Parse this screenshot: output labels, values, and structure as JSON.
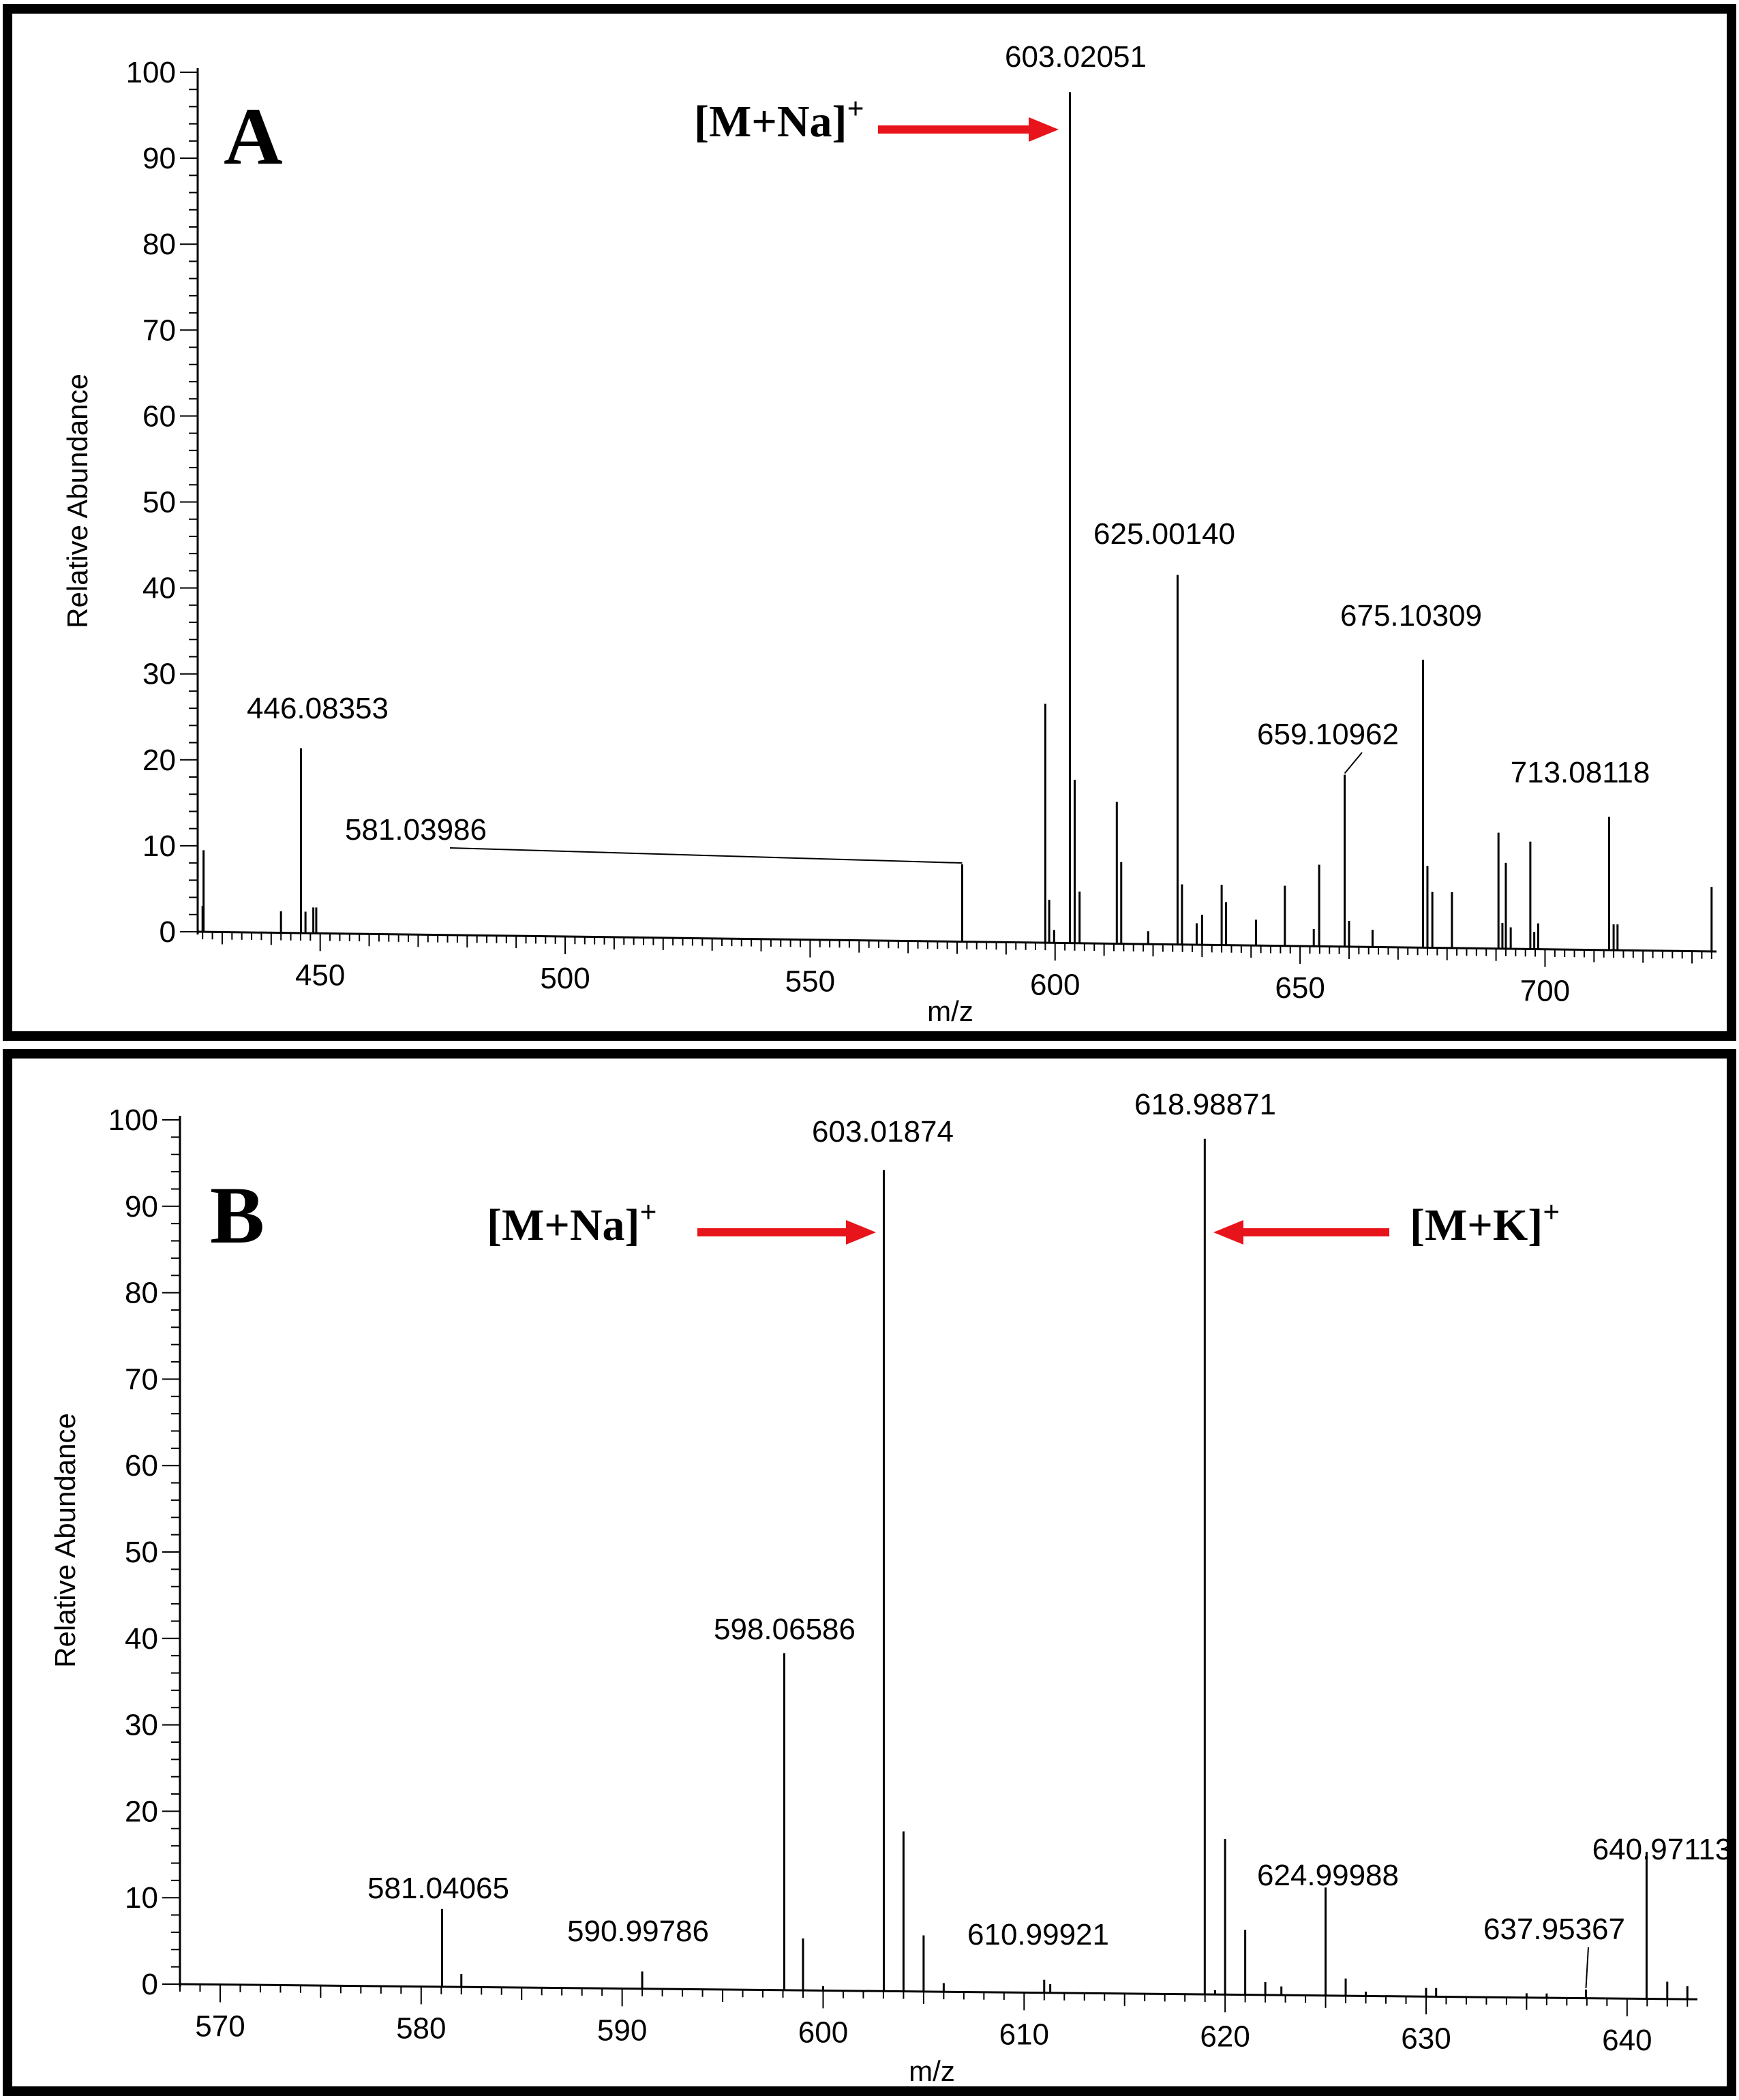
{
  "chart_data": [
    {
      "type": "bar",
      "panel": "A",
      "title": "",
      "xlabel": "m/z",
      "ylabel": "Relative Abundance",
      "xlim": [
        425,
        735
      ],
      "ylim": [
        0,
        100
      ],
      "x_ticks": [
        "450",
        "500",
        "550",
        "600",
        "650",
        "700"
      ],
      "y_ticks": [
        "0",
        "10",
        "20",
        "30",
        "40",
        "50",
        "60",
        "70",
        "80",
        "90",
        "100"
      ],
      "peaks": [
        {
          "mz": 426.2,
          "value": 9.5
        },
        {
          "mz": 426.0,
          "value": 3.0
        },
        {
          "mz": 442.0,
          "value": 2.5
        },
        {
          "mz": 446.08353,
          "value": 21.5,
          "label": "446.08353"
        },
        {
          "mz": 447.0,
          "value": 2.5
        },
        {
          "mz": 448.6,
          "value": 3.0
        },
        {
          "mz": 449.2,
          "value": 3.0
        },
        {
          "mz": 581.03986,
          "value": 9.0,
          "label": "581.03986"
        },
        {
          "mz": 598.0,
          "value": 27.8
        },
        {
          "mz": 598.8,
          "value": 5.0
        },
        {
          "mz": 599.8,
          "value": 1.5
        },
        {
          "mz": 603.02051,
          "value": 99.0,
          "label": "603.02051"
        },
        {
          "mz": 604.0,
          "value": 19.0
        },
        {
          "mz": 605.0,
          "value": 6.0
        },
        {
          "mz": 612.6,
          "value": 16.5
        },
        {
          "mz": 613.5,
          "value": 9.5
        },
        {
          "mz": 619.0,
          "value": 1.5
        },
        {
          "mz": 625.0014,
          "value": 43.0,
          "label": "625.00140"
        },
        {
          "mz": 625.9,
          "value": 7.0
        },
        {
          "mz": 628.9,
          "value": 2.5
        },
        {
          "mz": 630.0,
          "value": 3.5
        },
        {
          "mz": 634.0,
          "value": 7.0
        },
        {
          "mz": 634.9,
          "value": 5.0
        },
        {
          "mz": 641.0,
          "value": 3.0
        },
        {
          "mz": 646.9,
          "value": 7.0
        },
        {
          "mz": 652.8,
          "value": 2.0
        },
        {
          "mz": 653.9,
          "value": 9.5
        },
        {
          "mz": 659.10962,
          "value": 20.0,
          "label": "659.10962"
        },
        {
          "mz": 660.0,
          "value": 3.0
        },
        {
          "mz": 664.8,
          "value": 2.0
        },
        {
          "mz": 675.10309,
          "value": 33.5,
          "label": "675.10309"
        },
        {
          "mz": 676.0,
          "value": 9.5
        },
        {
          "mz": 677.0,
          "value": 6.5
        },
        {
          "mz": 681.0,
          "value": 6.5
        },
        {
          "mz": 690.5,
          "value": 13.5
        },
        {
          "mz": 691.3,
          "value": 3.0
        },
        {
          "mz": 692.0,
          "value": 10.0
        },
        {
          "mz": 693.0,
          "value": 2.5
        },
        {
          "mz": 697.0,
          "value": 12.5
        },
        {
          "mz": 697.8,
          "value": 2.0
        },
        {
          "mz": 698.6,
          "value": 3.0
        },
        {
          "mz": 713.08118,
          "value": 15.5,
          "label": "713.08118"
        },
        {
          "mz": 714.0,
          "value": 3.0
        },
        {
          "mz": 714.8,
          "value": 3.0
        },
        {
          "mz": 734.0,
          "value": 7.5
        }
      ],
      "letter": "A",
      "annotations": [
        {
          "ion": "[M+Na]",
          "charge": "+",
          "target_mz": 603.02051,
          "arrow": "right"
        }
      ],
      "colors": {
        "arrow": "#e8141b",
        "ink": "#000000"
      }
    },
    {
      "type": "bar",
      "panel": "B",
      "title": "",
      "xlabel": "m/z",
      "ylabel": "Relative Abundance",
      "xlim": [
        568,
        643.5
      ],
      "ylim": [
        0,
        100
      ],
      "x_ticks": [
        "570",
        "580",
        "590",
        "600",
        "610",
        "620",
        "630",
        "640"
      ],
      "y_ticks": [
        "0",
        "10",
        "20",
        "30",
        "40",
        "50",
        "60",
        "70",
        "80",
        "90",
        "100"
      ],
      "peaks": [
        {
          "mz": 581.04065,
          "value": 9.0,
          "label": "581.04065"
        },
        {
          "mz": 582.0,
          "value": 1.5
        },
        {
          "mz": 590.99786,
          "value": 2.0,
          "label": "590.99786"
        },
        {
          "mz": 598.06586,
          "value": 39.0,
          "label": "598.06586"
        },
        {
          "mz": 599.0,
          "value": 6.0
        },
        {
          "mz": 600.0,
          "value": 0.5
        },
        {
          "mz": 603.01874,
          "value": 95.0,
          "label": "603.01874"
        },
        {
          "mz": 604.0,
          "value": 18.5
        },
        {
          "mz": 605.0,
          "value": 6.5
        },
        {
          "mz": 606.0,
          "value": 1.0
        },
        {
          "mz": 610.99921,
          "value": 1.5,
          "label": "610.99921"
        },
        {
          "mz": 611.3,
          "value": 1.0
        },
        {
          "mz": 618.98871,
          "value": 99.0,
          "label": "618.98871"
        },
        {
          "mz": 619.5,
          "value": 0.5
        },
        {
          "mz": 620.0,
          "value": 18.0
        },
        {
          "mz": 621.0,
          "value": 7.5
        },
        {
          "mz": 622.0,
          "value": 1.5
        },
        {
          "mz": 622.8,
          "value": 1.0
        },
        {
          "mz": 624.99988,
          "value": 12.5,
          "label": "624.99988"
        },
        {
          "mz": 626.0,
          "value": 2.0
        },
        {
          "mz": 627.0,
          "value": 0.5
        },
        {
          "mz": 630.0,
          "value": 1.0
        },
        {
          "mz": 630.5,
          "value": 1.0
        },
        {
          "mz": 635.0,
          "value": 0.5
        },
        {
          "mz": 636.0,
          "value": 0.5
        },
        {
          "mz": 637.95367,
          "value": 1.0,
          "label": "637.95367"
        },
        {
          "mz": 640.97113,
          "value": 17.0,
          "label": "640.97113"
        },
        {
          "mz": 642.0,
          "value": 2.0
        },
        {
          "mz": 643.0,
          "value": 1.5
        }
      ],
      "letter": "B",
      "annotations": [
        {
          "ion": "[M+Na]",
          "charge": "+",
          "target_mz": 603.01874,
          "arrow": "right"
        },
        {
          "ion": "[M+K]",
          "charge": "+",
          "target_mz": 618.98871,
          "arrow": "left"
        }
      ],
      "colors": {
        "arrow": "#e8141b",
        "ink": "#000000"
      }
    }
  ]
}
